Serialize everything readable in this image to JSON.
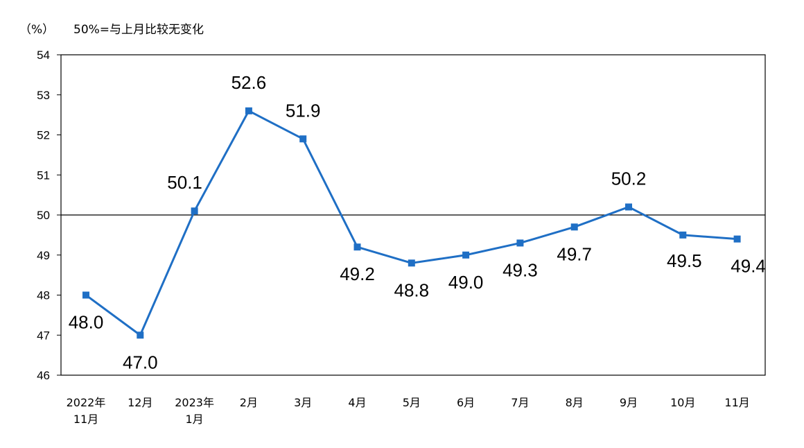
{
  "chart_data": {
    "type": "line",
    "unit_label": "（%）",
    "note": "50%=与上月比较无变化",
    "ylim": [
      46,
      54
    ],
    "yticks": [
      46,
      47,
      48,
      49,
      50,
      51,
      52,
      53,
      54
    ],
    "reference_line": 50,
    "grid": false,
    "line_color": "#1F6FC5",
    "categories": [
      [
        "2022年",
        "11月"
      ],
      [
        "12月"
      ],
      [
        "2023年",
        "1月"
      ],
      [
        "2月"
      ],
      [
        "3月"
      ],
      [
        "4月"
      ],
      [
        "5月"
      ],
      [
        "6月"
      ],
      [
        "7月"
      ],
      [
        "8月"
      ],
      [
        "9月"
      ],
      [
        "10月"
      ],
      [
        "11月"
      ]
    ],
    "values": [
      48.0,
      47.0,
      50.1,
      52.6,
      51.9,
      49.2,
      48.8,
      49.0,
      49.3,
      49.7,
      50.2,
      49.5,
      49.4
    ],
    "data_labels": [
      "48.0",
      "47.0",
      "50.1",
      "52.6",
      "51.9",
      "49.2",
      "48.8",
      "49.0",
      "49.3",
      "49.7",
      "50.2",
      "49.5",
      "49.4"
    ]
  }
}
